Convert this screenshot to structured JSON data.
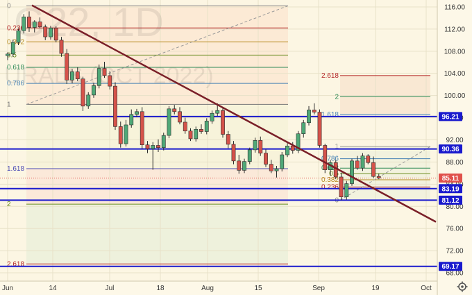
{
  "watermark": {
    "symbol": "G22, 1D",
    "name": "URALS (OCT 2022)"
  },
  "chart_data": {
    "type": "candlestick",
    "x_ticks": [
      "Jun",
      "14",
      "Jul",
      "18",
      "Aug",
      "15",
      "Sep",
      "19",
      "Oct"
    ],
    "y_ticks": [
      116,
      112,
      108,
      104,
      100,
      96,
      92,
      88,
      84,
      80,
      76,
      72,
      68
    ],
    "ylim": [
      66.5,
      117
    ],
    "candles": [
      [
        107.2,
        107.8,
        106.4,
        107.5
      ],
      [
        107.5,
        110.1,
        107.0,
        109.6
      ],
      [
        109.6,
        112.1,
        109.1,
        111.7
      ],
      [
        111.7,
        114.7,
        111.2,
        114.2
      ],
      [
        114.2,
        115.2,
        111.5,
        112.3
      ],
      [
        112.3,
        113.6,
        111.4,
        113.3
      ],
      [
        113.3,
        114.1,
        112.2,
        112.4
      ],
      [
        112.4,
        112.8,
        110.0,
        110.6
      ],
      [
        110.6,
        112.6,
        110.1,
        112.2
      ],
      [
        112.2,
        112.5,
        109.6,
        110.0
      ],
      [
        110.0,
        110.6,
        107.0,
        107.6
      ],
      [
        107.6,
        108.4,
        102.1,
        102.8
      ],
      [
        102.8,
        104.8,
        102.2,
        104.3
      ],
      [
        104.3,
        105.1,
        102.6,
        103.0
      ],
      [
        103.0,
        103.4,
        97.2,
        98.1
      ],
      [
        98.1,
        100.6,
        97.6,
        100.1
      ],
      [
        100.1,
        102.3,
        99.6,
        101.8
      ],
      [
        101.8,
        105.6,
        101.3,
        104.9
      ],
      [
        104.9,
        106.1,
        103.2,
        103.6
      ],
      [
        103.6,
        104.4,
        101.1,
        101.7
      ],
      [
        101.7,
        102.4,
        93.8,
        94.4
      ],
      [
        94.4,
        95.3,
        90.6,
        91.3
      ],
      [
        91.3,
        95.6,
        90.8,
        94.7
      ],
      [
        94.7,
        97.5,
        94.2,
        96.6
      ],
      [
        96.6,
        97.6,
        96.1,
        97.1
      ],
      [
        97.1,
        97.9,
        90.4,
        91.1
      ],
      [
        91.1,
        91.8,
        89.6,
        90.4
      ],
      [
        90.4,
        91.6,
        86.6,
        91.0
      ],
      [
        91.0,
        92.1,
        89.8,
        90.6
      ],
      [
        90.6,
        93.3,
        90.1,
        92.8
      ],
      [
        92.8,
        98.1,
        92.3,
        97.6
      ],
      [
        97.6,
        98.3,
        96.6,
        97.1
      ],
      [
        97.1,
        97.9,
        94.8,
        95.2
      ],
      [
        95.2,
        96.0,
        93.1,
        93.6
      ],
      [
        93.6,
        94.1,
        91.8,
        92.2
      ],
      [
        92.2,
        94.4,
        91.7,
        93.9
      ],
      [
        93.9,
        94.8,
        93.1,
        93.5
      ],
      [
        93.5,
        95.9,
        93.0,
        95.4
      ],
      [
        95.4,
        97.3,
        94.9,
        96.8
      ],
      [
        96.8,
        98.6,
        96.3,
        97.3
      ],
      [
        97.3,
        97.9,
        92.4,
        93.0
      ],
      [
        93.0,
        93.6,
        90.5,
        91.2
      ],
      [
        91.2,
        91.8,
        87.6,
        88.2
      ],
      [
        88.2,
        89.3,
        85.9,
        86.5
      ],
      [
        86.5,
        88.6,
        86.0,
        88.1
      ],
      [
        88.1,
        90.6,
        87.6,
        90.2
      ],
      [
        90.2,
        92.4,
        89.7,
        91.9
      ],
      [
        91.9,
        92.6,
        89.1,
        89.6
      ],
      [
        89.6,
        90.3,
        87.1,
        87.6
      ],
      [
        87.6,
        88.4,
        86.0,
        86.4
      ],
      [
        86.4,
        87.3,
        85.2,
        86.8
      ],
      [
        86.8,
        89.8,
        86.3,
        89.3
      ],
      [
        89.3,
        91.4,
        88.9,
        90.9
      ],
      [
        90.9,
        91.6,
        89.5,
        90.1
      ],
      [
        90.1,
        93.6,
        89.6,
        93.1
      ],
      [
        93.1,
        95.6,
        92.4,
        95.1
      ],
      [
        95.1,
        98.1,
        94.6,
        97.4
      ],
      [
        97.4,
        98.6,
        96.6,
        97.0
      ],
      [
        97.0,
        97.5,
        90.6,
        91.0
      ],
      [
        91.0,
        91.3,
        86.0,
        86.6
      ],
      [
        86.6,
        88.4,
        85.5,
        87.9
      ],
      [
        87.9,
        88.4,
        84.9,
        85.3
      ],
      [
        85.3,
        86.1,
        81.1,
        81.7
      ],
      [
        81.7,
        84.6,
        81.2,
        84.1
      ],
      [
        84.1,
        88.6,
        83.7,
        88.2
      ],
      [
        88.2,
        89.1,
        86.6,
        86.9
      ],
      [
        86.9,
        89.6,
        86.4,
        89.1
      ],
      [
        89.1,
        89.4,
        87.6,
        87.9
      ],
      [
        87.9,
        89.0,
        85.1,
        85.4
      ],
      [
        85.4,
        85.9,
        84.9,
        85.11
      ]
    ],
    "price_levels": [
      {
        "value": 96.21,
        "label": "96.21",
        "color": "#1a1acd"
      },
      {
        "value": 90.36,
        "label": "90.36",
        "color": "#1a1acd"
      },
      {
        "value": 83.19,
        "label": "83.19",
        "color": "#1a1acd"
      },
      {
        "value": 81.12,
        "label": "81.12",
        "color": "#1a1acd"
      },
      {
        "value": 69.17,
        "label": "69.17",
        "color": "#1a1acd"
      }
    ],
    "last_price": {
      "value": 85.11,
      "label": "85.11",
      "color": "#e0514b"
    },
    "trendline": {
      "from": [
        0,
        116.3
      ],
      "to": [
        82,
        77.2
      ],
      "color": "#7a1f28"
    },
    "fib_large": [
      {
        "ratio": "0",
        "value": 116.2,
        "color": "#888888"
      },
      {
        "ratio": "0.236",
        "value": 112.2,
        "color": "#b22222"
      },
      {
        "ratio": "0.382",
        "value": 109.7,
        "color": "#b58a1e"
      },
      {
        "ratio": "0.5",
        "value": 107.3,
        "color": "#6b8e23"
      },
      {
        "ratio": "0.618",
        "value": 105.1,
        "color": "#2e8b57"
      },
      {
        "ratio": "0.786",
        "value": 102.2,
        "color": "#4682b4"
      },
      {
        "ratio": "1",
        "value": 98.4,
        "color": "#777777"
      },
      {
        "ratio": "1.618",
        "value": 86.8,
        "color": "#4b4bb5"
      },
      {
        "ratio": "2",
        "value": 80.4,
        "color": "#6b8e23"
      },
      {
        "ratio": "2.618",
        "value": 69.6,
        "color": "#b22222"
      }
    ],
    "fib_small": [
      {
        "ratio": "2.618",
        "value": 103.6,
        "color": "#b22222"
      },
      {
        "ratio": "2",
        "value": 99.8,
        "color": "#2e8b57"
      },
      {
        "ratio": "1.618",
        "value": 96.6,
        "color": "#4682b4"
      },
      {
        "ratio": "1",
        "value": 90.8,
        "color": "#999999"
      },
      {
        "ratio": "0.786",
        "value": 88.6,
        "color": "#4682b4"
      },
      {
        "ratio": "0.618",
        "value": 86.9,
        "color": "#2e8b57"
      },
      {
        "ratio": "0.5",
        "value": 85.9,
        "color": "#6b8e23"
      },
      {
        "ratio": "0.382",
        "value": 84.8,
        "color": "#b58a1e"
      },
      {
        "ratio": "0.236",
        "value": 83.5,
        "color": "#b22222"
      },
      {
        "ratio": "0",
        "value": 81.1,
        "color": "#888888"
      }
    ],
    "colors": {
      "up": "#4fa877",
      "down": "#d5524a"
    }
  },
  "icons": {
    "settings": "gear-icon"
  }
}
